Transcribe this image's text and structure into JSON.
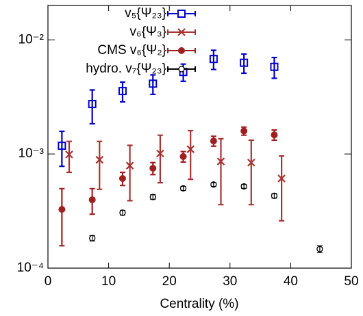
{
  "chart_data": {
    "type": "scatter",
    "log_y": true,
    "x_label": "Centrality (%)",
    "xlim": [
      0,
      50
    ],
    "xticks": [
      0,
      10,
      20,
      30,
      40,
      50
    ],
    "ylim": [
      0.0001,
      0.02
    ],
    "yticks": [
      {
        "value": 0.0001,
        "label": "10⁻⁴"
      },
      {
        "value": 0.001,
        "label": "10⁻³"
      },
      {
        "value": 0.01,
        "label": "10⁻²"
      }
    ],
    "legend": "top-right",
    "series": [
      {
        "name": "v₅{Ψ₂₃}",
        "color": "#0000cc",
        "marker": "open-square",
        "x": [
          2.3,
          7.3,
          12.3,
          17.3,
          22.3,
          27.3,
          32.3,
          37.3
        ],
        "values": [
          0.00118,
          0.00274,
          0.00356,
          0.00413,
          0.00523,
          0.0068,
          0.0063,
          0.0058
        ],
        "errors": [
          0.0004,
          0.0009,
          0.0007,
          0.0008,
          0.0009,
          0.0013,
          0.0012,
          0.0012
        ]
      },
      {
        "name": "v₆{Ψ₃}",
        "color": "#a83232",
        "marker": "cross",
        "x": [
          3.5,
          8.5,
          13.5,
          18.5,
          23.5,
          28.5,
          33.5,
          38.5
        ],
        "values": [
          0.00099,
          0.00089,
          0.00079,
          0.00101,
          0.0011,
          0.00086,
          0.00084,
          0.00061
        ],
        "errors": [
          0.0003,
          0.0004,
          0.0004,
          0.00045,
          0.0005,
          0.0005,
          0.00048,
          0.00035
        ]
      },
      {
        "name": "CMS v₆{Ψ₂}",
        "color": "#a02020",
        "marker": "filled-circle",
        "x": [
          2.3,
          7.3,
          12.3,
          17.3,
          22.3,
          27.3,
          32.3,
          37.3
        ],
        "values": [
          0.000327,
          0.000397,
          0.00061,
          0.00075,
          0.00095,
          0.0013,
          0.00159,
          0.00147
        ],
        "errors": [
          0.00017,
          0.0001,
          8e-05,
          9e-05,
          0.0001,
          0.00013,
          0.00013,
          0.00015
        ]
      },
      {
        "name": "hydro. v₇{Ψ₂₃}",
        "color": "#000000",
        "marker": "open-circle",
        "x": [
          7.3,
          12.3,
          17.3,
          22.3,
          27.3,
          32.3,
          37.3,
          44.8
        ],
        "values": [
          0.000183,
          0.000306,
          0.00042,
          0.0005,
          0.00054,
          0.00052,
          0.00043,
          0.000147
        ],
        "errors": [
          1e-05,
          1.5e-05,
          2e-05,
          2e-05,
          2e-05,
          2e-05,
          2e-05,
          1e-05
        ]
      }
    ]
  }
}
